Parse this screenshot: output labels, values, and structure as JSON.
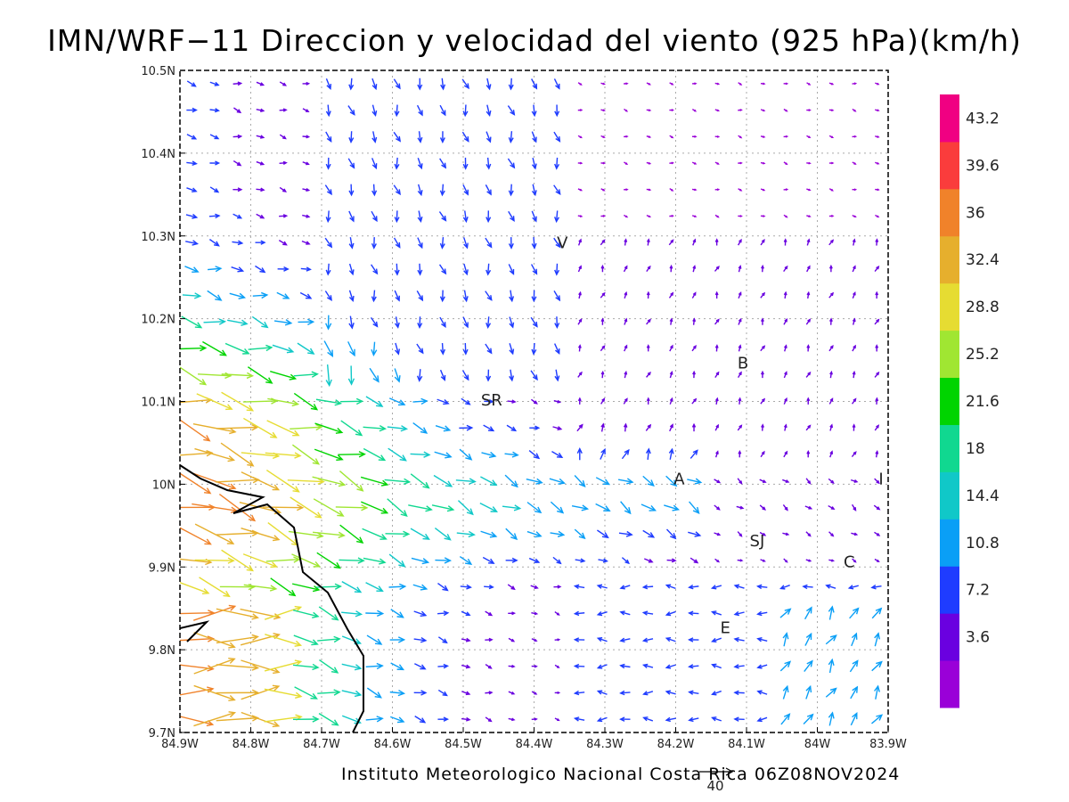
{
  "title": "IMN/WRF−11 Direccion y velocidad del viento (925 hPa)(km/h)",
  "footer": "Instituto Meteorologico Nacional Costa Rica 06Z08NOV2024",
  "reference_vector": {
    "label": "40"
  },
  "axes": {
    "lon_ticks": [
      "84.9W",
      "84.8W",
      "84.7W",
      "84.6W",
      "84.5W",
      "84.4W",
      "84.3W",
      "84.2W",
      "84.1W",
      "84W",
      "83.9W"
    ],
    "lat_ticks": [
      "10.5N",
      "10.4N",
      "10.3N",
      "10.2N",
      "10.1N",
      "10N",
      "9.9N",
      "9.8N",
      "9.7N"
    ]
  },
  "places": [
    {
      "label": "V",
      "lon": -84.36,
      "lat": 10.285
    },
    {
      "label": "SR",
      "lon": -84.46,
      "lat": 10.095
    },
    {
      "label": "B",
      "lon": -84.105,
      "lat": 10.14
    },
    {
      "label": "A",
      "lon": -84.195,
      "lat": 10.0
    },
    {
      "label": "SJ",
      "lon": -84.085,
      "lat": 9.925
    },
    {
      "label": "C",
      "lon": -83.955,
      "lat": 9.9
    },
    {
      "label": "E",
      "lon": -84.13,
      "lat": 9.82
    },
    {
      "label": "I",
      "lon": -83.91,
      "lat": 10.0
    }
  ],
  "colorbar": {
    "labels": [
      "3.6",
      "7.2",
      "10.8",
      "14.4",
      "18",
      "21.6",
      "25.2",
      "28.8",
      "32.4",
      "36",
      "39.6",
      "43.2"
    ],
    "colors": [
      "#9a00d8",
      "#6a00e0",
      "#1f3cff",
      "#0a9ff6",
      "#10c8c8",
      "#10d890",
      "#00d400",
      "#a0e632",
      "#e6dc32",
      "#e6af2d",
      "#f0822a",
      "#fa3c3c",
      "#f00082"
    ]
  },
  "chart_data": {
    "type": "vector-field",
    "title": "IMN/WRF−11 Direccion y velocidad del viento (925 hPa)(km/h)",
    "xlim": [
      -84.9,
      -83.9
    ],
    "ylim": [
      9.7,
      10.5
    ],
    "units": "km/h",
    "grid": true
  }
}
